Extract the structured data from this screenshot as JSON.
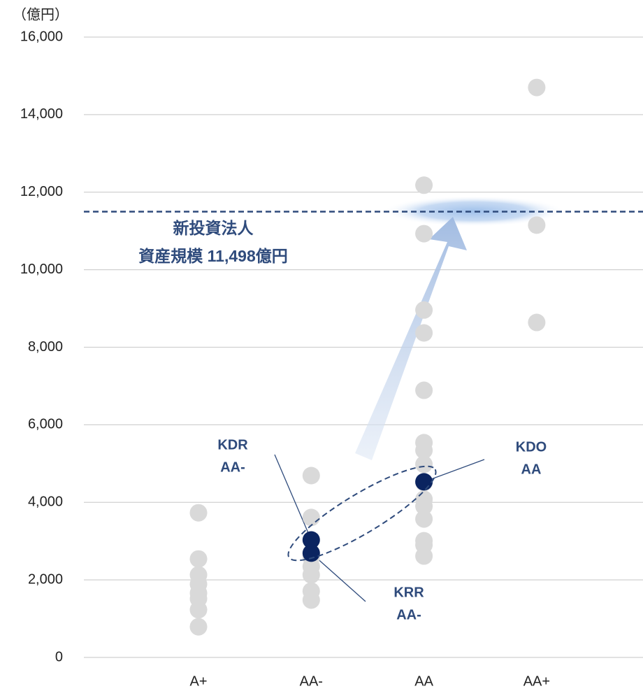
{
  "chart_data": {
    "type": "strip",
    "y_unit_label": "（億円）",
    "categories": [
      "A+",
      "AA-",
      "AA",
      "AA+"
    ],
    "ylim": [
      0,
      16000
    ],
    "yticks": [
      0,
      {
        "value": 2000,
        "label": "2,000"
      },
      {
        "value": 4000,
        "label": "4,000"
      },
      {
        "value": 6000,
        "label": "6,000"
      },
      {
        "value": 8000,
        "label": "8,000"
      },
      {
        "value": 10000,
        "label": "10,000"
      },
      {
        "value": 12000,
        "label": "12,000"
      },
      {
        "value": 14000,
        "label": "14,000"
      },
      {
        "value": 16000,
        "label": "16,000"
      }
    ],
    "grid": true,
    "series": [
      {
        "color": "#d9d9d9",
        "x": [
          "A+",
          "A+",
          "A+",
          "A+",
          "A+",
          "A+",
          "A+",
          "A+",
          "AA-",
          "AA-",
          "AA-",
          "AA-",
          "AA-",
          "AA-",
          "AA-",
          "AA",
          "AA",
          "AA",
          "AA",
          "AA",
          "AA",
          "AA",
          "AA",
          "AA",
          "AA",
          "AA",
          "AA",
          "AA",
          "AA",
          "AA",
          "AA+",
          "AA+",
          "AA+"
        ],
        "values": [
          3730,
          2540,
          2130,
          1890,
          1660,
          1515,
          1230,
          790,
          4690,
          3610,
          2580,
          2345,
          2130,
          1710,
          1480,
          12180,
          10930,
          8960,
          8370,
          6890,
          5540,
          5340,
          4980,
          4510,
          4080,
          3900,
          3570,
          3010,
          2900,
          2615,
          14700,
          11150,
          8640
        ]
      },
      {
        "color": "#0b2460",
        "x": [
          "AA-",
          "AA-",
          "AA"
        ],
        "values": [
          3030,
          2690,
          4530
        ]
      }
    ],
    "annotations": [
      {
        "lines": [
          "KDR",
          "AA-"
        ]
      },
      {
        "lines": [
          "KRR",
          "AA-"
        ]
      },
      {
        "lines": [
          "KDO",
          "AA"
        ]
      }
    ],
    "reference_line": {
      "value": 11498,
      "color": "#2f4b7c",
      "label_lines": [
        "新投資法人",
        "資産規模  11,498億円"
      ]
    }
  }
}
